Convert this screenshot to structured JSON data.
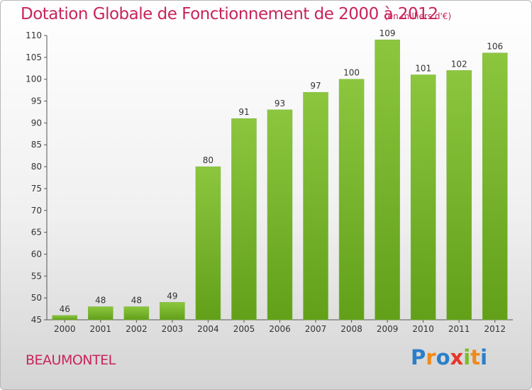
{
  "chart_data": {
    "type": "bar",
    "title": "Dotation Globale de Fonctionnement de 2000 à 2012",
    "subtitle": "(en milliers d'€)",
    "categories": [
      "2000",
      "2001",
      "2002",
      "2003",
      "2004",
      "2005",
      "2006",
      "2007",
      "2008",
      "2009",
      "2010",
      "2011",
      "2012"
    ],
    "values": [
      46,
      48,
      48,
      49,
      80,
      91,
      93,
      97,
      100,
      109,
      101,
      102,
      106
    ],
    "ylim": [
      45,
      110
    ],
    "yticks": [
      45,
      50,
      55,
      60,
      65,
      70,
      75,
      80,
      85,
      90,
      95,
      100,
      105,
      110
    ],
    "xlabel": "",
    "ylabel": "",
    "grid": false,
    "bar_color": "#8cc63f",
    "bar_color_dark": "#62a01a"
  },
  "commune": "BEAUMONTEL",
  "logo": {
    "letters": [
      "P",
      "r",
      "o",
      "x",
      "i",
      "t",
      "i"
    ],
    "colors": [
      "#2a7fc9",
      "#f08a1c",
      "#2a7fc9",
      "#e8352a",
      "#7dbb2a",
      "#f08a1c",
      "#2a7fc9"
    ]
  },
  "colors": {
    "title": "#c8245a"
  }
}
